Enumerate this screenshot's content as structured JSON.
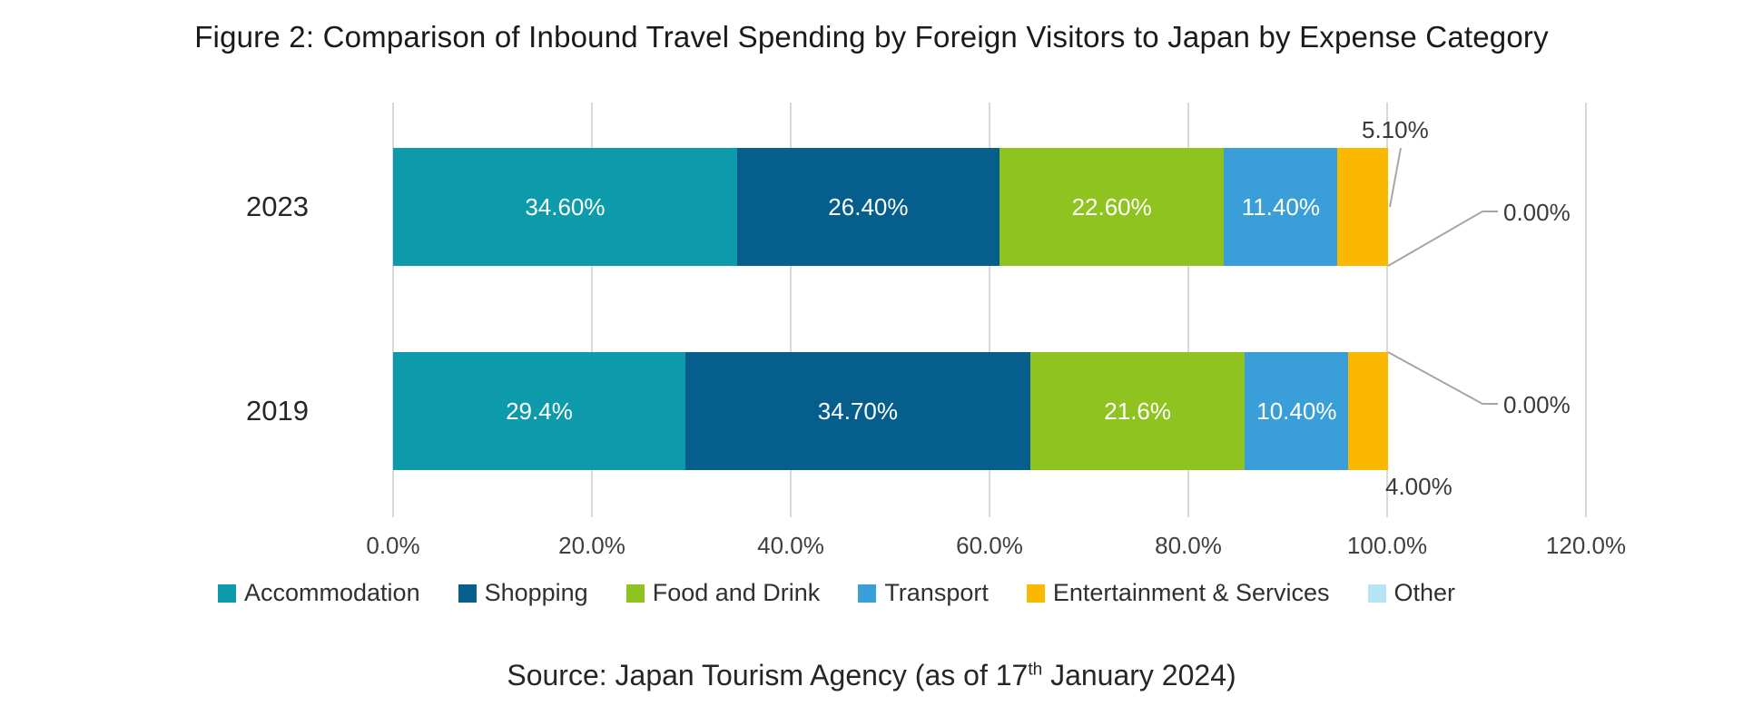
{
  "figure": {
    "title": "Figure 2: Comparison of Inbound Travel Spending by Foreign Visitors to Japan by Expense Category"
  },
  "source": {
    "prefix": "Source: Japan Tourism Agency (as of 17",
    "superscript": "th",
    "suffix": " January 2024)"
  },
  "chart_data": {
    "type": "bar",
    "subtype": "horizontal-stacked",
    "title": "Figure 2: Comparison of Inbound Travel Spending by Foreign Visitors to Japan by Expense Category",
    "categories": [
      "2023",
      "2019"
    ],
    "series": [
      {
        "name": "Accommodation",
        "color": "#0d9aaa",
        "values": [
          34.6,
          29.4
        ],
        "labels": [
          "34.60%",
          "29.4%"
        ],
        "label_inside": true
      },
      {
        "name": "Shopping",
        "color": "#055e8c",
        "values": [
          26.4,
          34.7
        ],
        "labels": [
          "26.40%",
          "34.70%"
        ],
        "label_inside": true
      },
      {
        "name": "Food and Drink",
        "color": "#8fc31f",
        "values": [
          22.6,
          21.6
        ],
        "labels": [
          "22.60%",
          "21.6%"
        ],
        "label_inside": true
      },
      {
        "name": "Transport",
        "color": "#3a9fd9",
        "values": [
          11.4,
          10.4
        ],
        "labels": [
          "11.40%",
          "10.40%"
        ],
        "label_inside": true
      },
      {
        "name": "Entertainment & Services",
        "color": "#fbb800",
        "values": [
          5.1,
          4.0
        ],
        "labels": [
          "5.10%",
          "4.00%"
        ],
        "label_inside": false
      },
      {
        "name": "Other",
        "color": "#b5e5f5",
        "values": [
          0.0,
          0.0
        ],
        "labels": [
          "0.00%",
          "0.00%"
        ],
        "label_inside": false
      }
    ],
    "outside_labels": {
      "entertainment_2023": "5.10%",
      "entertainment_2019": "4.00%",
      "other_2023": "0.00%",
      "other_2019": "0.00%"
    },
    "x_axis": {
      "min": 0,
      "max": 120,
      "tick_labels": [
        "0.0%",
        "20.0%",
        "40.0%",
        "60.0%",
        "80.0%",
        "100.0%",
        "120.0%"
      ]
    },
    "grid": true,
    "legend_position": "bottom",
    "legend_entries": [
      "Accommodation",
      "Shopping",
      "Food and Drink",
      "Transport",
      "Entertainment & Services",
      "Other"
    ],
    "colors": {
      "gridline": "#d9d9d9",
      "callout_line": "#a6a6a6",
      "data_label_inside": "#ffffff",
      "data_label_outside": "#3a3a3a"
    }
  }
}
